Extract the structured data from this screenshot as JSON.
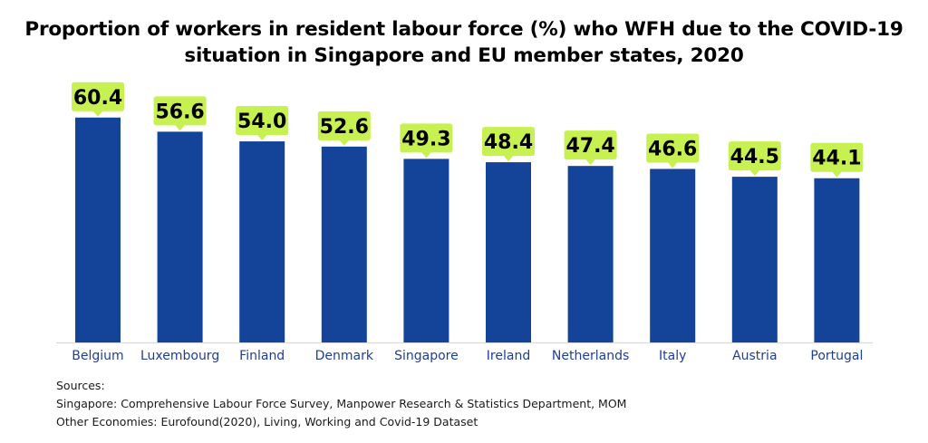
{
  "chart_data": {
    "type": "bar",
    "title_lines": [
      "Proportion of workers in resident labour force (%) who WFH due to the COVID-19",
      "situation in Singapore and EU member states, 2020"
    ],
    "categories": [
      "Belgium",
      "Luxembourg",
      "Finland",
      "Denmark",
      "Singapore",
      "Ireland",
      "Netherlands",
      "Italy",
      "Austria",
      "Portugal"
    ],
    "values": [
      60.4,
      56.6,
      54.0,
      52.6,
      49.3,
      48.4,
      47.4,
      46.6,
      44.5,
      44.1
    ],
    "value_labels": [
      "60.4",
      "56.6",
      "54.0",
      "52.6",
      "49.3",
      "48.4",
      "47.4",
      "46.6",
      "44.5",
      "44.1"
    ],
    "xlabel": "",
    "ylabel": "",
    "ylim": [
      0,
      66
    ],
    "grid": false,
    "legend": "none",
    "bar_color": "#13449a",
    "label_box_color": "#c6f150",
    "category_label_color": "#1f3f95",
    "axis_color": "#d9d9d9"
  },
  "sources": {
    "heading": "Sources:",
    "lines": [
      "Singapore: Comprehensive Labour Force Survey, Manpower Research & Statistics Department, MOM",
      "Other Economies: Eurofound(2020), Living, Working and Covid-19 Dataset"
    ]
  }
}
